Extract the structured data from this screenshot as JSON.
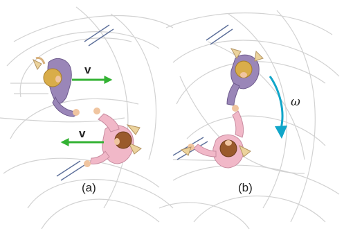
{
  "diagram": {
    "panel_a": {
      "caption": "(a)",
      "velocity_top_label": "v",
      "velocity_bottom_label": "v"
    },
    "panel_b": {
      "caption": "(b)",
      "angular_velocity_label": "ω"
    }
  },
  "colors": {
    "arrow_green": "#33b233",
    "arrow_cyan": "#11a6c9",
    "skater_purple": "#9a86b8",
    "skater_pink": "#f1b8c8",
    "hair_blonde": "#d9ad4a",
    "hair_brown": "#9a5a2c",
    "skate_marks": "#d2d2d2",
    "blade_lines": "#5c6f9a"
  }
}
